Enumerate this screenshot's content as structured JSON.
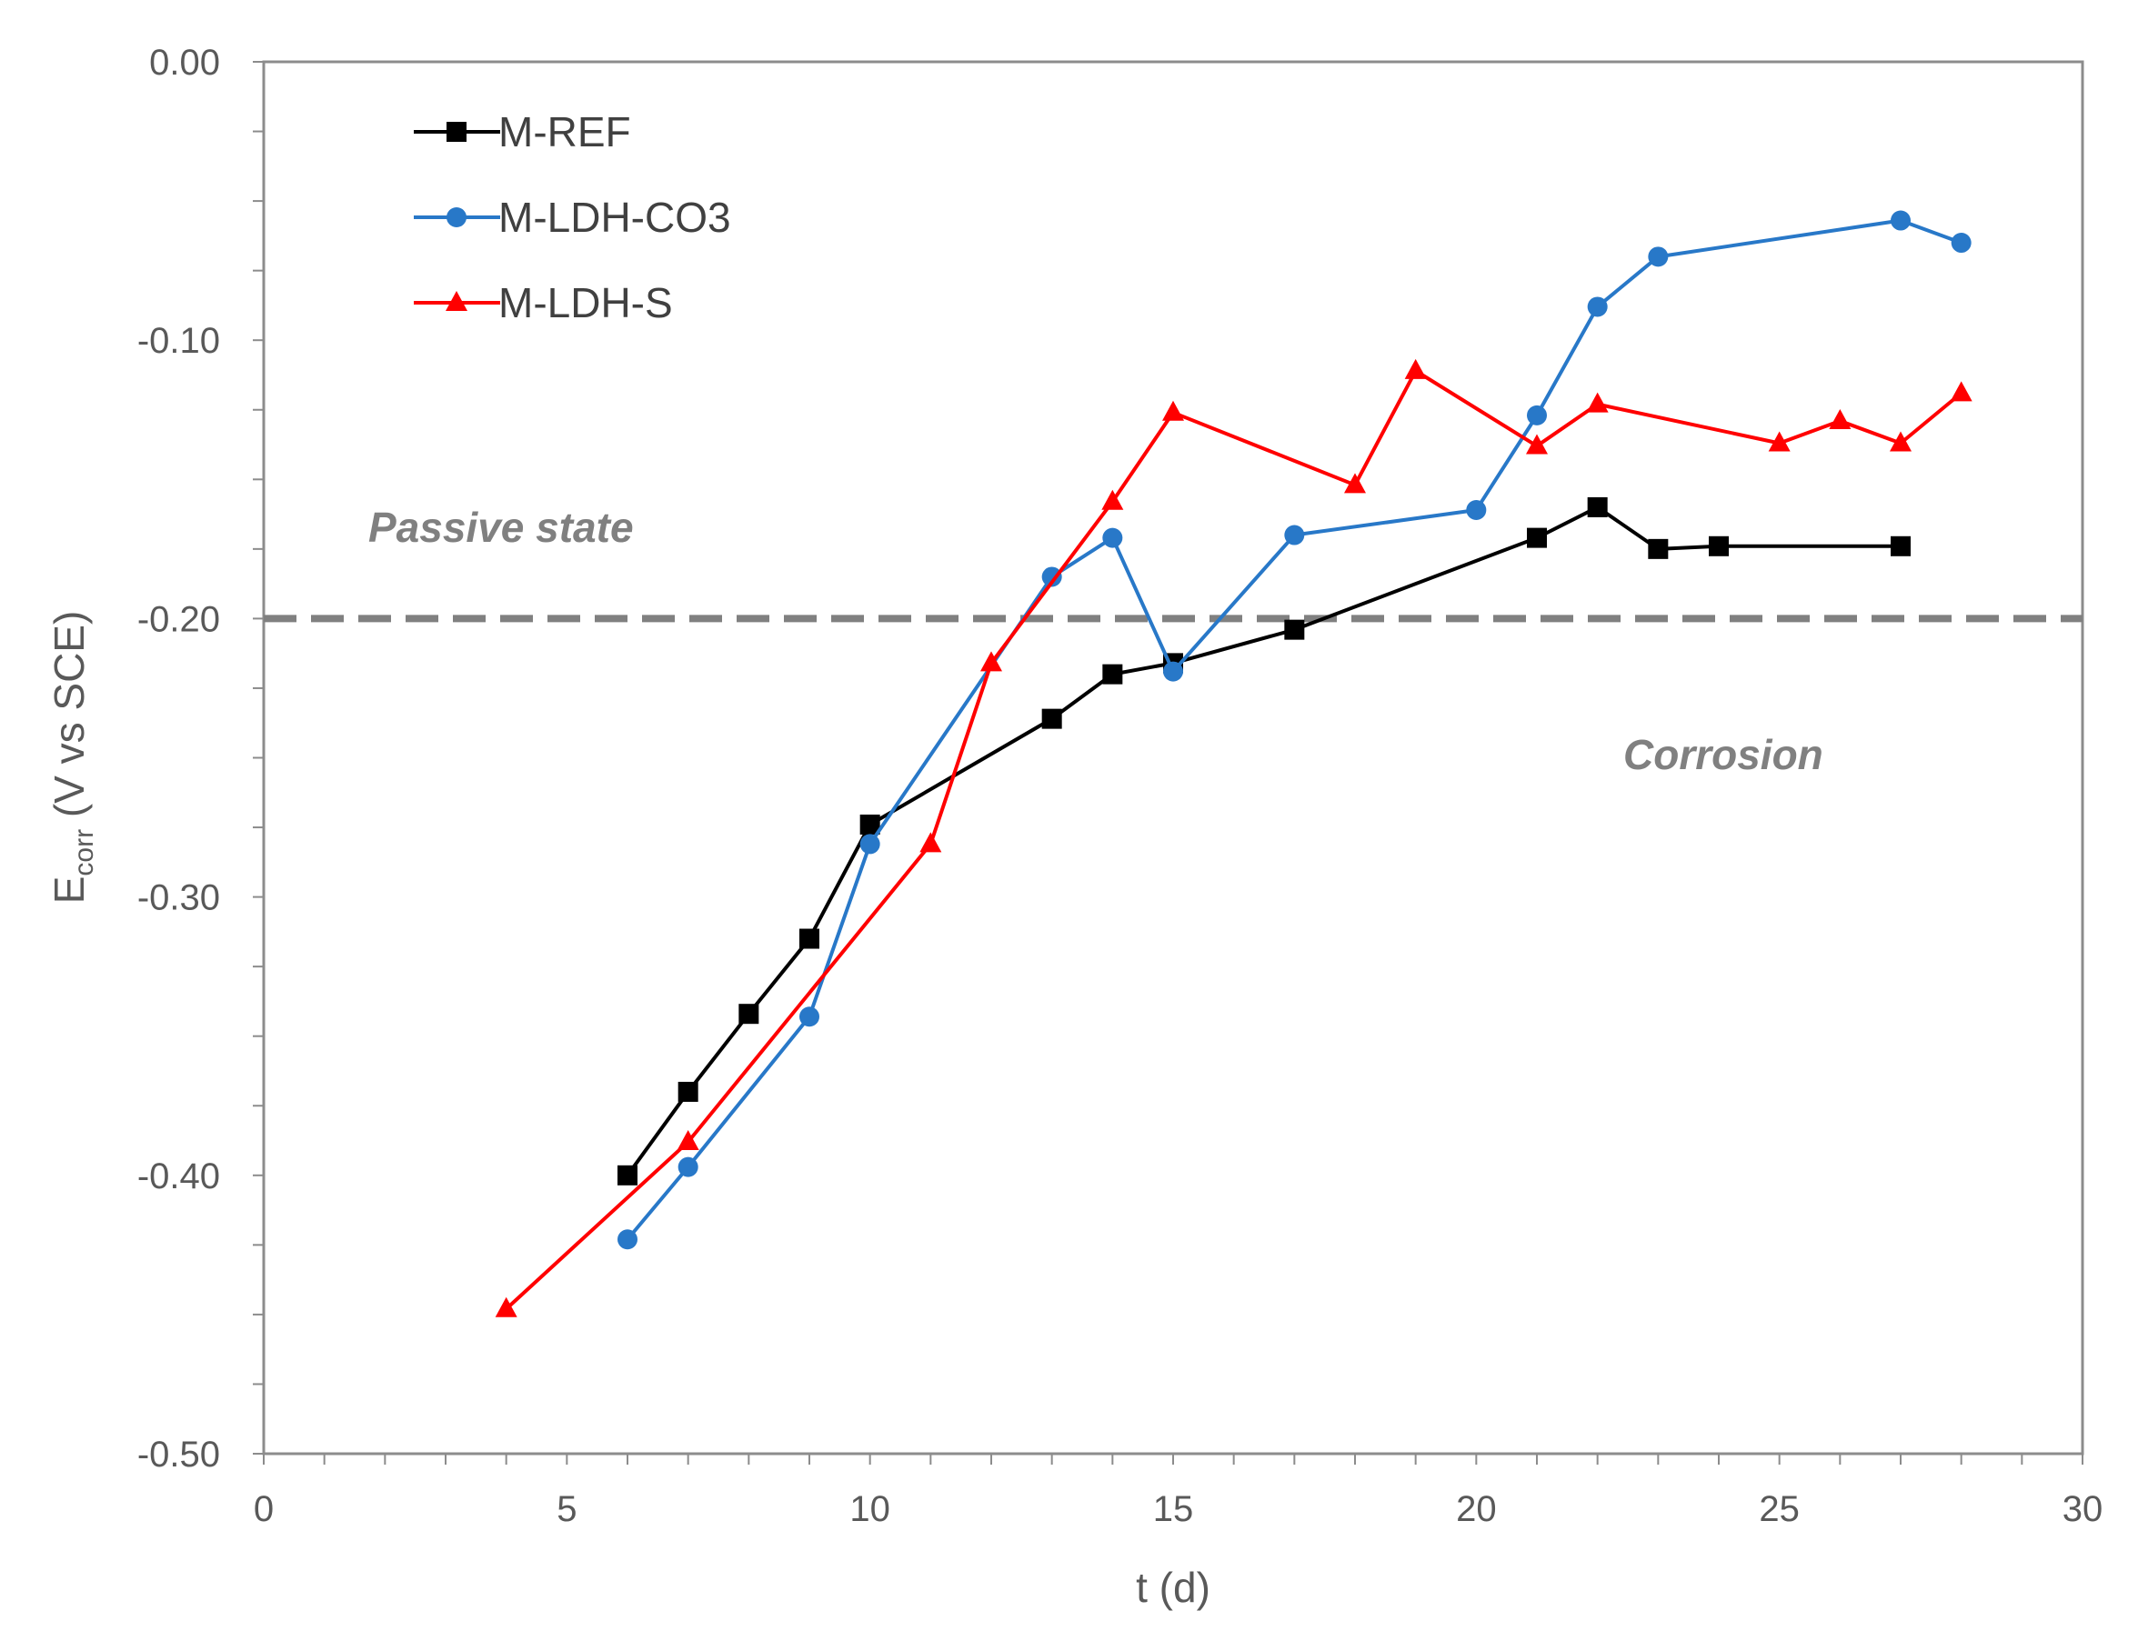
{
  "chart_data": {
    "type": "line",
    "title": "",
    "xlabel": "t (d)",
    "ylabel_main": "E",
    "ylabel_sub": "corr",
    "ylabel_rest": " (V vs SCE)",
    "xlim": [
      0,
      30
    ],
    "ylim": [
      -0.5,
      0.0
    ],
    "x_major_step": 5,
    "x_minor_step": 1,
    "y_major_step": 0.1,
    "y_minor_step": 0.025,
    "x_ticks": [
      "0",
      "5",
      "10",
      "15",
      "20",
      "25",
      "30"
    ],
    "y_ticks": [
      "0.00",
      "-0.10",
      "-0.20",
      "-0.30",
      "-0.40",
      "-0.50"
    ],
    "threshold": {
      "value": -0.2,
      "color": "#808080"
    },
    "regions": {
      "above": "Passive state",
      "below": "Corrosion"
    },
    "legend_position": "top-left",
    "series": [
      {
        "name": "M-REF",
        "color": "#000000",
        "marker": "square",
        "x": [
          6,
          7,
          8,
          9,
          10,
          13,
          14,
          15,
          17,
          21,
          22,
          23,
          24,
          27
        ],
        "y": [
          -0.4,
          -0.37,
          -0.342,
          -0.315,
          -0.274,
          -0.236,
          -0.22,
          -0.216,
          -0.204,
          -0.171,
          -0.16,
          -0.175,
          -0.174,
          -0.174
        ]
      },
      {
        "name": "M-LDH-CO3",
        "color": "#2878c8",
        "marker": "circle",
        "x": [
          6,
          7,
          9,
          10,
          13,
          14,
          15,
          17,
          20,
          21,
          22,
          23,
          27,
          28
        ],
        "y": [
          -0.423,
          -0.397,
          -0.343,
          -0.281,
          -0.185,
          -0.171,
          -0.219,
          -0.17,
          -0.161,
          -0.127,
          -0.088,
          -0.07,
          -0.057,
          -0.065
        ]
      },
      {
        "name": "M-LDH-S",
        "color": "#ff0000",
        "marker": "triangle",
        "x": [
          4,
          7,
          11,
          12,
          14,
          15,
          18,
          19,
          21,
          22,
          25,
          26,
          27,
          28
        ],
        "y": [
          -0.448,
          -0.388,
          -0.281,
          -0.216,
          -0.158,
          -0.126,
          -0.152,
          -0.111,
          -0.138,
          -0.123,
          -0.137,
          -0.129,
          -0.137,
          -0.119
        ]
      }
    ]
  }
}
